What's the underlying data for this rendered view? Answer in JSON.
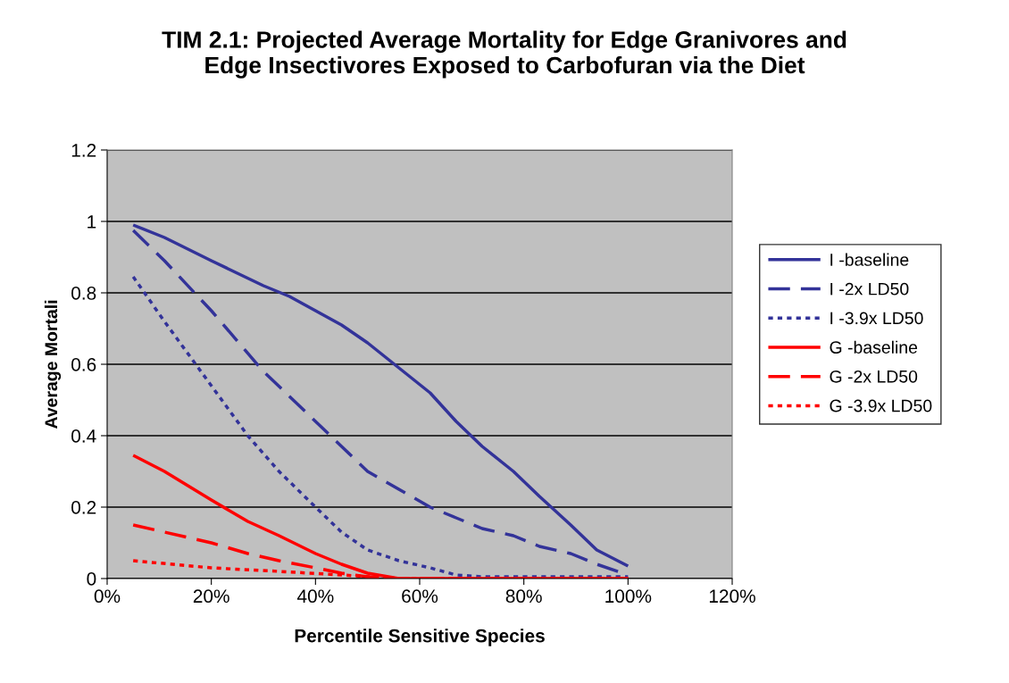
{
  "chart_data": {
    "type": "line",
    "title": "TIM 2.1: Projected Average Mortality for Edge Granivores and\nEdge Insectivores Exposed to Carbofuran via the Diet",
    "xlabel": "Percentile Sensitive Species",
    "ylabel": "Average Mortali",
    "xlim": [
      0,
      1.2
    ],
    "xticks": [
      {
        "value": 0,
        "label": "0%"
      },
      {
        "value": 0.2,
        "label": "20%"
      },
      {
        "value": 0.4,
        "label": "40%"
      },
      {
        "value": 0.6,
        "label": "60%"
      },
      {
        "value": 0.8,
        "label": "80%"
      },
      {
        "value": 1.0,
        "label": "100%"
      },
      {
        "value": 1.2,
        "label": "120%"
      }
    ],
    "ylim": [
      0,
      1.2
    ],
    "yticks": [
      0,
      0.2,
      0.4,
      0.6,
      0.8,
      1,
      1.2
    ],
    "grid": "y",
    "legend": "right",
    "marker": "none",
    "series": [
      {
        "name": "I -baseline",
        "color": "#333399",
        "line_style": "solid",
        "x": [
          0.05,
          0.11,
          0.2,
          0.3,
          0.35,
          0.4,
          0.45,
          0.5,
          0.56,
          0.62,
          0.67,
          0.72,
          0.78,
          0.83,
          0.89,
          0.94,
          1.0
        ],
        "values": [
          0.99,
          0.955,
          0.89,
          0.82,
          0.79,
          0.75,
          0.71,
          0.66,
          0.59,
          0.52,
          0.44,
          0.37,
          0.3,
          0.23,
          0.15,
          0.08,
          0.035
        ]
      },
      {
        "name": "I -2x LD50",
        "color": "#333399",
        "line_style": "dashed",
        "x": [
          0.05,
          0.11,
          0.2,
          0.3,
          0.4,
          0.45,
          0.5,
          0.56,
          0.62,
          0.67,
          0.72,
          0.78,
          0.83,
          0.89,
          0.94,
          1.0
        ],
        "values": [
          0.975,
          0.89,
          0.75,
          0.58,
          0.44,
          0.37,
          0.3,
          0.25,
          0.2,
          0.17,
          0.14,
          0.12,
          0.09,
          0.07,
          0.04,
          0.01
        ]
      },
      {
        "name": "I -3.9x LD50",
        "color": "#333399",
        "line_style": "dotted",
        "x": [
          0.05,
          0.11,
          0.2,
          0.27,
          0.33,
          0.4,
          0.45,
          0.5,
          0.56,
          0.62,
          0.67,
          0.72,
          1.0
        ],
        "values": [
          0.845,
          0.72,
          0.54,
          0.4,
          0.3,
          0.2,
          0.13,
          0.08,
          0.05,
          0.03,
          0.01,
          0.005,
          0.005
        ]
      },
      {
        "name": "G -baseline",
        "color": "#ff0000",
        "line_style": "solid",
        "x": [
          0.05,
          0.11,
          0.2,
          0.27,
          0.33,
          0.4,
          0.45,
          0.5,
          0.56,
          1.0
        ],
        "values": [
          0.345,
          0.3,
          0.22,
          0.16,
          0.12,
          0.07,
          0.04,
          0.015,
          0,
          0
        ]
      },
      {
        "name": "G -2x LD50",
        "color": "#ff0000",
        "line_style": "dashed",
        "x": [
          0.05,
          0.11,
          0.2,
          0.27,
          0.33,
          0.4,
          0.45,
          0.5,
          0.56,
          1.0
        ],
        "values": [
          0.15,
          0.13,
          0.1,
          0.07,
          0.05,
          0.03,
          0.015,
          0.005,
          0,
          0
        ]
      },
      {
        "name": "G -3.9x LD50",
        "color": "#ff0000",
        "line_style": "dotted",
        "x": [
          0.05,
          0.2,
          0.33,
          0.45,
          0.56,
          1.0
        ],
        "values": [
          0.05,
          0.03,
          0.02,
          0.01,
          0,
          0
        ]
      }
    ]
  }
}
